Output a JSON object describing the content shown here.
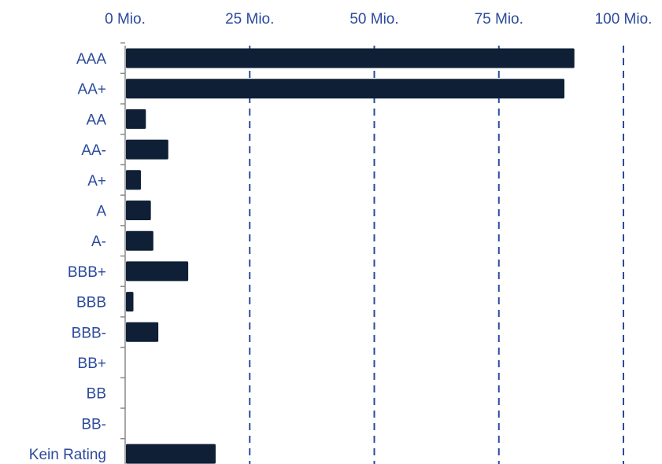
{
  "chart_data": {
    "type": "bar",
    "orientation": "horizontal",
    "categories": [
      "AAA",
      "AA+",
      "AA",
      "AA-",
      "A+",
      "A",
      "A-",
      "BBB+",
      "BBB",
      "BBB-",
      "BB+",
      "BB",
      "BB-",
      "Kein Rating"
    ],
    "values": [
      90,
      88,
      4,
      8.5,
      3,
      5,
      5.5,
      12.5,
      1.5,
      6.5,
      0,
      0,
      0,
      18
    ],
    "xlim": [
      0,
      100
    ],
    "xticks": [
      0,
      25,
      50,
      75,
      100
    ],
    "xtick_labels": [
      "0 Mio.",
      "25 Mio.",
      "50 Mio.",
      "75 Mio.",
      "100 Mio."
    ],
    "xaxis_position": "top",
    "grid": "vertical dashed",
    "title": "",
    "xlabel": "",
    "ylabel": "",
    "colors": {
      "bar": "#0f1f36",
      "label": "#2b4a9c",
      "grid": "#2b4a9c",
      "axis": "#8a8a8a"
    }
  }
}
